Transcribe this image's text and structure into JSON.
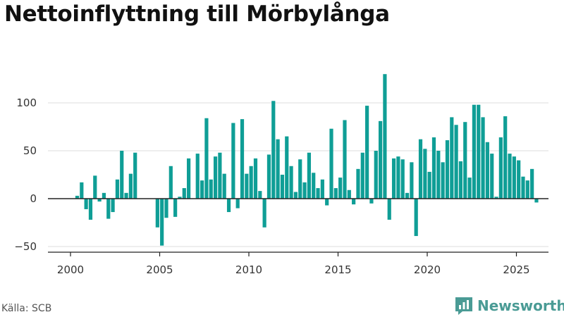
{
  "title": "Nettoinflyttning till Mörbylånga",
  "source": "Källa: SCB",
  "brand": {
    "name": "Newsworthy"
  },
  "colors": {
    "bar": "#0f9e96",
    "grid": "#dddddd",
    "axis": "#222222",
    "text": "#333333"
  },
  "chart_data": {
    "type": "bar",
    "x_ticks": [
      "2000",
      "2005",
      "2010",
      "2015",
      "2020",
      "2025"
    ],
    "y_ticks": [
      "−50",
      "0",
      "50",
      "100"
    ],
    "y_tick_values": [
      -50,
      0,
      50,
      100
    ],
    "ylim": [
      -55,
      130
    ],
    "xlim": [
      1999.25,
      2026.85
    ],
    "grid": true,
    "series_start": 2000,
    "frequency": "quarterly",
    "values": [
      0,
      3,
      17,
      -11,
      -22,
      24,
      -3,
      6,
      -21,
      -14,
      20,
      50,
      6,
      26,
      48,
      0,
      0,
      0,
      0,
      -30,
      -49,
      -20,
      34,
      -19,
      2,
      11,
      42,
      0,
      47,
      19,
      84,
      20,
      44,
      48,
      26,
      -14,
      79,
      -10,
      83,
      26,
      34,
      42,
      8,
      -30,
      46,
      102,
      62,
      25,
      65,
      34,
      7,
      41,
      17,
      48,
      27,
      11,
      20,
      -7,
      73,
      11,
      22,
      82,
      9,
      -6,
      31,
      48,
      97,
      -5,
      50,
      81,
      130,
      -22,
      42,
      44,
      41,
      6,
      38,
      -39,
      62,
      52,
      28,
      64,
      50,
      38,
      61,
      85,
      77,
      39,
      80,
      22,
      98,
      98,
      85,
      59,
      47,
      2,
      64,
      86,
      47,
      44,
      40,
      23,
      19,
      31,
      -4
    ]
  }
}
